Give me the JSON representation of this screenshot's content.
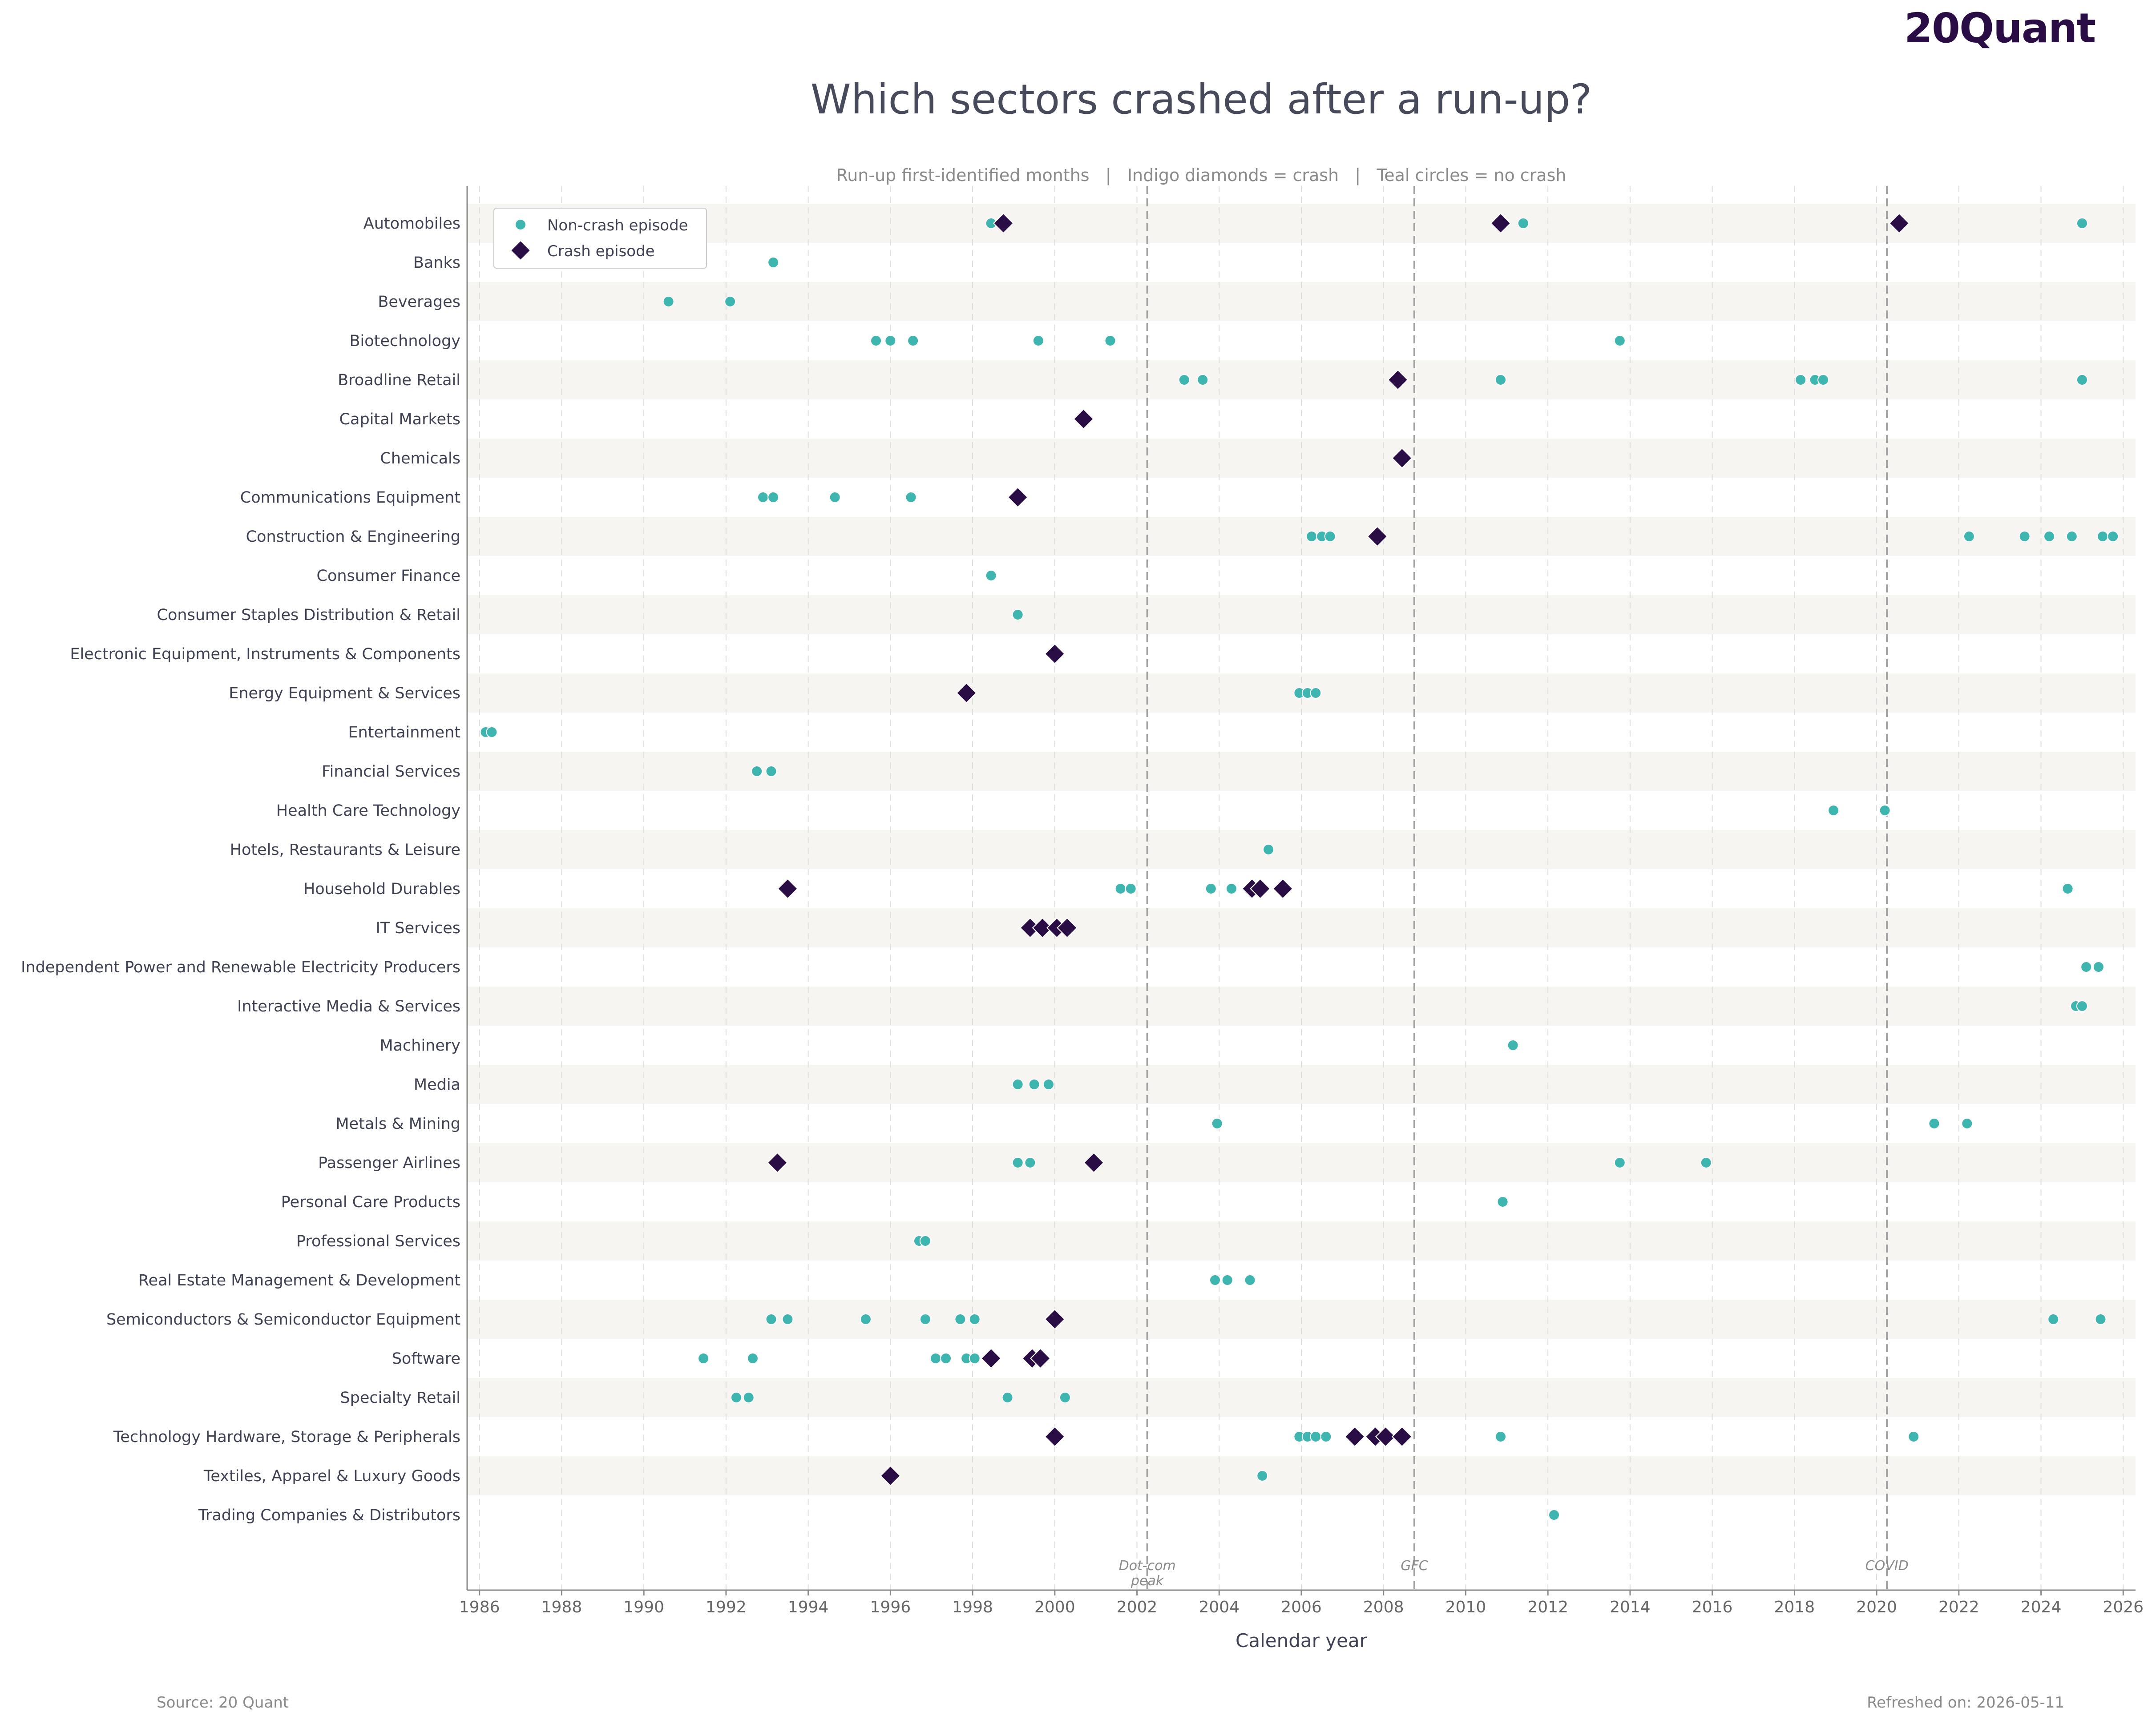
{
  "brand": "20Quant",
  "footer": {
    "source": "Source: 20 Quant",
    "refreshed": "Refreshed on: 2026-05-11"
  },
  "colors": {
    "crash": "#2a0d45",
    "non_crash": "#3fb5b0",
    "band": "#f6f5f2",
    "event_line": "#a0a0a0"
  },
  "chart_data": {
    "type": "scatter",
    "title": "Which sectors crashed after a run-up?",
    "subtitle": "Run-up first-identified months   |   Indigo diamonds = crash   |   Teal circles = no crash",
    "xlabel": "Calendar year",
    "xlim": [
      1985.7,
      2026.3
    ],
    "xticks": [
      1986,
      1988,
      1990,
      1992,
      1994,
      1996,
      1998,
      2000,
      2002,
      2004,
      2006,
      2008,
      2010,
      2012,
      2014,
      2016,
      2018,
      2020,
      2022,
      2024,
      2026
    ],
    "grid": "x",
    "legend_position": "top-left",
    "legend": [
      "Non-crash episode",
      "Crash episode"
    ],
    "events": [
      {
        "x": 2002.25,
        "label": [
          "Dot-com",
          "peak"
        ]
      },
      {
        "x": 2008.75,
        "label": [
          "GFC"
        ]
      },
      {
        "x": 2020.25,
        "label": [
          "COVID"
        ]
      }
    ],
    "categories": [
      "Automobiles",
      "Banks",
      "Beverages",
      "Biotechnology",
      "Broadline Retail",
      "Capital Markets",
      "Chemicals",
      "Communications Equipment",
      "Construction & Engineering",
      "Consumer Finance",
      "Consumer Staples Distribution & Retail",
      "Electronic Equipment, Instruments & Components",
      "Energy Equipment & Services",
      "Entertainment",
      "Financial Services",
      "Health Care Technology",
      "Hotels, Restaurants & Leisure",
      "Household Durables",
      "IT Services",
      "Independent Power and Renewable Electricity Producers",
      "Interactive Media & Services",
      "Machinery",
      "Media",
      "Metals & Mining",
      "Passenger Airlines",
      "Personal Care Products",
      "Professional Services",
      "Real Estate Management & Development",
      "Semiconductors & Semiconductor Equipment",
      "Software",
      "Specialty Retail",
      "Technology Hardware, Storage & Peripherals",
      "Textiles, Apparel & Luxury Goods",
      "Trading Companies & Distributors"
    ],
    "series": [
      {
        "name": "Non-crash episode",
        "marker": "circle",
        "points": [
          [
            1998.45,
            "Automobiles"
          ],
          [
            2011.4,
            "Automobiles"
          ],
          [
            2025.0,
            "Automobiles"
          ],
          [
            1993.15,
            "Banks"
          ],
          [
            1990.6,
            "Beverages"
          ],
          [
            1992.1,
            "Beverages"
          ],
          [
            1995.65,
            "Biotechnology"
          ],
          [
            1996.0,
            "Biotechnology"
          ],
          [
            1996.55,
            "Biotechnology"
          ],
          [
            1999.6,
            "Biotechnology"
          ],
          [
            2001.35,
            "Biotechnology"
          ],
          [
            2013.75,
            "Biotechnology"
          ],
          [
            2003.15,
            "Broadline Retail"
          ],
          [
            2003.6,
            "Broadline Retail"
          ],
          [
            2010.85,
            "Broadline Retail"
          ],
          [
            2018.15,
            "Broadline Retail"
          ],
          [
            2018.5,
            "Broadline Retail"
          ],
          [
            2018.7,
            "Broadline Retail"
          ],
          [
            2025.0,
            "Broadline Retail"
          ],
          [
            1992.9,
            "Communications Equipment"
          ],
          [
            1993.15,
            "Communications Equipment"
          ],
          [
            1994.65,
            "Communications Equipment"
          ],
          [
            1996.5,
            "Communications Equipment"
          ],
          [
            2006.25,
            "Construction & Engineering"
          ],
          [
            2006.5,
            "Construction & Engineering"
          ],
          [
            2006.7,
            "Construction & Engineering"
          ],
          [
            2022.25,
            "Construction & Engineering"
          ],
          [
            2023.6,
            "Construction & Engineering"
          ],
          [
            2024.2,
            "Construction & Engineering"
          ],
          [
            2024.75,
            "Construction & Engineering"
          ],
          [
            2025.5,
            "Construction & Engineering"
          ],
          [
            2025.75,
            "Construction & Engineering"
          ],
          [
            1998.45,
            "Consumer Finance"
          ],
          [
            1999.1,
            "Consumer Staples Distribution & Retail"
          ],
          [
            2005.95,
            "Energy Equipment & Services"
          ],
          [
            2006.15,
            "Energy Equipment & Services"
          ],
          [
            2006.35,
            "Energy Equipment & Services"
          ],
          [
            1986.15,
            "Entertainment"
          ],
          [
            1986.3,
            "Entertainment"
          ],
          [
            1992.75,
            "Financial Services"
          ],
          [
            1993.1,
            "Financial Services"
          ],
          [
            2018.95,
            "Health Care Technology"
          ],
          [
            2020.2,
            "Health Care Technology"
          ],
          [
            2005.2,
            "Hotels, Restaurants & Leisure"
          ],
          [
            2001.6,
            "Household Durables"
          ],
          [
            2001.85,
            "Household Durables"
          ],
          [
            2003.8,
            "Household Durables"
          ],
          [
            2004.3,
            "Household Durables"
          ],
          [
            2024.65,
            "Household Durables"
          ],
          [
            2025.1,
            "Independent Power and Renewable Electricity Producers"
          ],
          [
            2025.4,
            "Independent Power and Renewable Electricity Producers"
          ],
          [
            2024.85,
            "Interactive Media & Services"
          ],
          [
            2025.0,
            "Interactive Media & Services"
          ],
          [
            2011.15,
            "Machinery"
          ],
          [
            1999.1,
            "Media"
          ],
          [
            1999.5,
            "Media"
          ],
          [
            1999.85,
            "Media"
          ],
          [
            2003.95,
            "Metals & Mining"
          ],
          [
            2021.4,
            "Metals & Mining"
          ],
          [
            2022.2,
            "Metals & Mining"
          ],
          [
            1999.1,
            "Passenger Airlines"
          ],
          [
            1999.4,
            "Passenger Airlines"
          ],
          [
            2013.75,
            "Passenger Airlines"
          ],
          [
            2015.85,
            "Passenger Airlines"
          ],
          [
            2010.9,
            "Personal Care Products"
          ],
          [
            1996.7,
            "Professional Services"
          ],
          [
            1996.85,
            "Professional Services"
          ],
          [
            2003.9,
            "Real Estate Management & Development"
          ],
          [
            2004.2,
            "Real Estate Management & Development"
          ],
          [
            2004.75,
            "Real Estate Management & Development"
          ],
          [
            1993.1,
            "Semiconductors & Semiconductor Equipment"
          ],
          [
            1993.5,
            "Semiconductors & Semiconductor Equipment"
          ],
          [
            1995.4,
            "Semiconductors & Semiconductor Equipment"
          ],
          [
            1996.85,
            "Semiconductors & Semiconductor Equipment"
          ],
          [
            1997.7,
            "Semiconductors & Semiconductor Equipment"
          ],
          [
            1998.05,
            "Semiconductors & Semiconductor Equipment"
          ],
          [
            2024.3,
            "Semiconductors & Semiconductor Equipment"
          ],
          [
            2025.45,
            "Semiconductors & Semiconductor Equipment"
          ],
          [
            1991.45,
            "Software"
          ],
          [
            1992.65,
            "Software"
          ],
          [
            1997.1,
            "Software"
          ],
          [
            1997.35,
            "Software"
          ],
          [
            1997.85,
            "Software"
          ],
          [
            1998.05,
            "Software"
          ],
          [
            1992.25,
            "Specialty Retail"
          ],
          [
            1992.55,
            "Specialty Retail"
          ],
          [
            1998.85,
            "Specialty Retail"
          ],
          [
            2000.25,
            "Specialty Retail"
          ],
          [
            2005.95,
            "Technology Hardware, Storage & Peripherals"
          ],
          [
            2006.15,
            "Technology Hardware, Storage & Peripherals"
          ],
          [
            2006.35,
            "Technology Hardware, Storage & Peripherals"
          ],
          [
            2006.6,
            "Technology Hardware, Storage & Peripherals"
          ],
          [
            2010.85,
            "Technology Hardware, Storage & Peripherals"
          ],
          [
            2020.9,
            "Technology Hardware, Storage & Peripherals"
          ],
          [
            2005.05,
            "Textiles, Apparel & Luxury Goods"
          ],
          [
            2012.15,
            "Trading Companies & Distributors"
          ]
        ]
      },
      {
        "name": "Crash episode",
        "marker": "diamond",
        "points": [
          [
            1998.75,
            "Automobiles"
          ],
          [
            2010.85,
            "Automobiles"
          ],
          [
            2020.55,
            "Automobiles"
          ],
          [
            2008.35,
            "Broadline Retail"
          ],
          [
            2000.7,
            "Capital Markets"
          ],
          [
            2008.45,
            "Chemicals"
          ],
          [
            1999.1,
            "Communications Equipment"
          ],
          [
            2007.85,
            "Construction & Engineering"
          ],
          [
            2000.0,
            "Electronic Equipment, Instruments & Components"
          ],
          [
            1997.85,
            "Energy Equipment & Services"
          ],
          [
            1993.5,
            "Household Durables"
          ],
          [
            2004.8,
            "Household Durables"
          ],
          [
            2005.0,
            "Household Durables"
          ],
          [
            2005.55,
            "Household Durables"
          ],
          [
            1999.4,
            "IT Services"
          ],
          [
            1999.7,
            "IT Services"
          ],
          [
            2000.05,
            "IT Services"
          ],
          [
            2000.3,
            "IT Services"
          ],
          [
            1993.25,
            "Passenger Airlines"
          ],
          [
            2000.95,
            "Passenger Airlines"
          ],
          [
            2000.0,
            "Semiconductors & Semiconductor Equipment"
          ],
          [
            1998.45,
            "Software"
          ],
          [
            1999.45,
            "Software"
          ],
          [
            1999.65,
            "Software"
          ],
          [
            2000.0,
            "Technology Hardware, Storage & Peripherals"
          ],
          [
            2007.3,
            "Technology Hardware, Storage & Peripherals"
          ],
          [
            2007.8,
            "Technology Hardware, Storage & Peripherals"
          ],
          [
            2008.05,
            "Technology Hardware, Storage & Peripherals"
          ],
          [
            2008.45,
            "Technology Hardware, Storage & Peripherals"
          ],
          [
            1996.0,
            "Textiles, Apparel & Luxury Goods"
          ]
        ]
      }
    ]
  }
}
